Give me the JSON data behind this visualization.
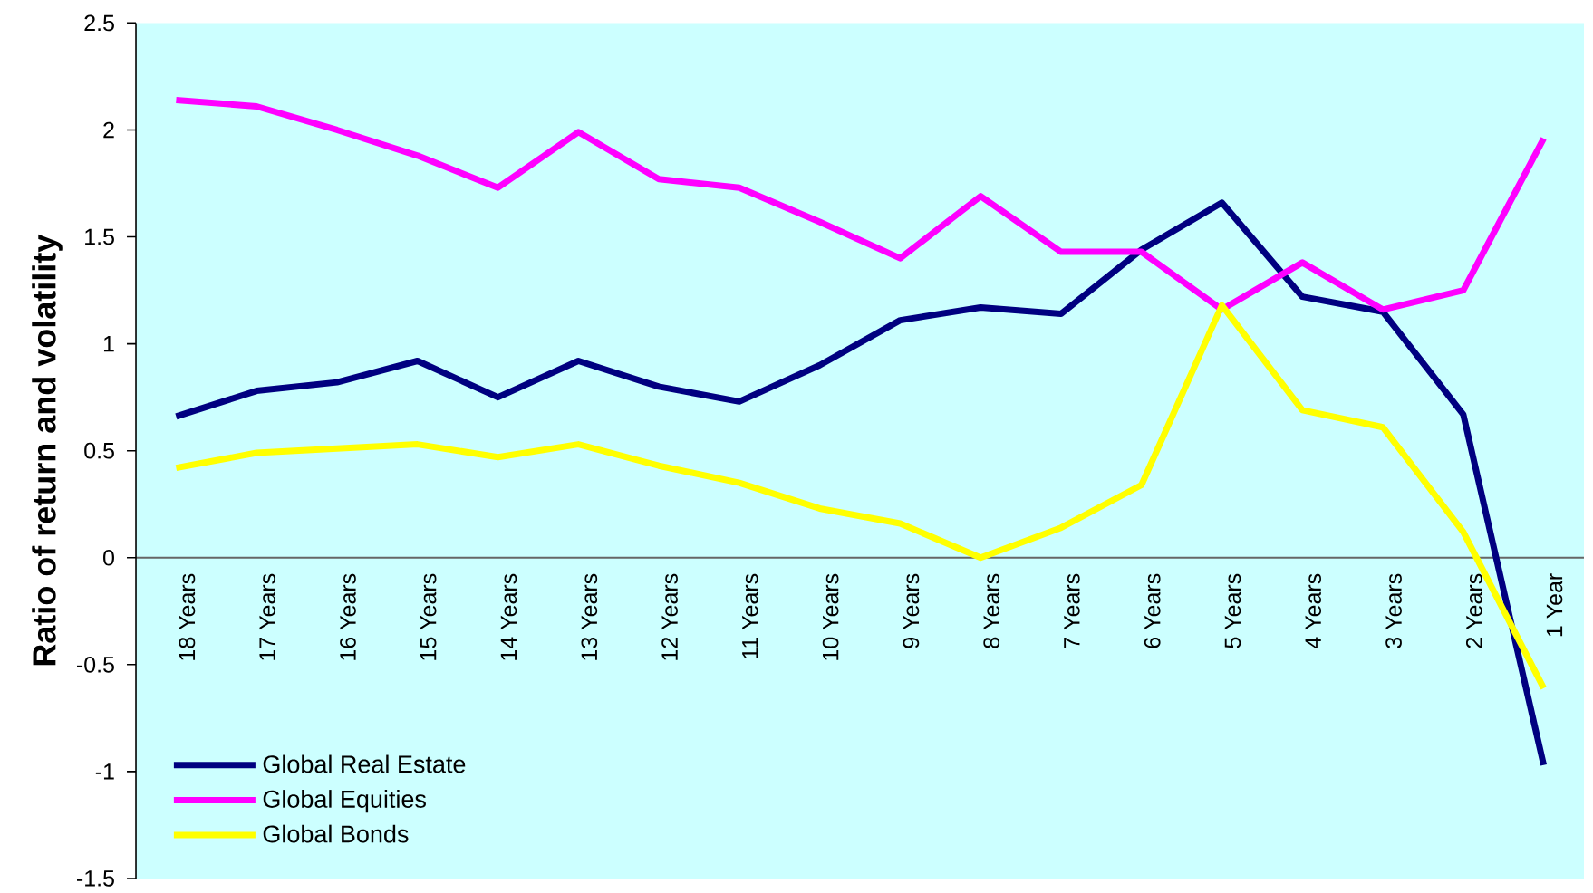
{
  "chart_data": {
    "type": "line",
    "ylabel": "Ratio of return and volatility",
    "categories": [
      "18 Years",
      "17 Years",
      "16 Years",
      "15 Years",
      "14 Years",
      "13 Years",
      "12 Years",
      "11 Years",
      "10 Years",
      "9 Years",
      "8 Years",
      "7 Years",
      "6 Years",
      "5 Years",
      "4 Years",
      "3 Years",
      "2 Years",
      "1 Year"
    ],
    "series": [
      {
        "name": "Global Real Estate",
        "color": "#000080",
        "values": [
          0.66,
          0.78,
          0.82,
          0.92,
          0.75,
          0.92,
          0.8,
          0.73,
          0.9,
          1.11,
          1.17,
          1.14,
          1.44,
          1.66,
          1.22,
          1.15,
          0.67,
          -0.97
        ]
      },
      {
        "name": "Global Equities",
        "color": "#ff00ff",
        "values": [
          2.14,
          2.11,
          2.0,
          1.88,
          1.73,
          1.99,
          1.77,
          1.73,
          1.57,
          1.4,
          1.69,
          1.43,
          1.43,
          1.16,
          1.38,
          1.16,
          1.25,
          1.96
        ]
      },
      {
        "name": "Global Bonds",
        "color": "#ffff00",
        "values": [
          0.42,
          0.49,
          0.51,
          0.53,
          0.47,
          0.53,
          0.43,
          0.35,
          0.23,
          0.16,
          0.0,
          0.14,
          0.34,
          1.18,
          0.69,
          0.61,
          0.12,
          -0.61
        ]
      }
    ],
    "ylim": [
      -1.5,
      2.5
    ],
    "yticks": [
      -1.5,
      -1,
      -0.5,
      0,
      0.5,
      1,
      1.5,
      2,
      2.5
    ],
    "legend": "bottom left",
    "marker": "none",
    "line_style": "solid"
  }
}
